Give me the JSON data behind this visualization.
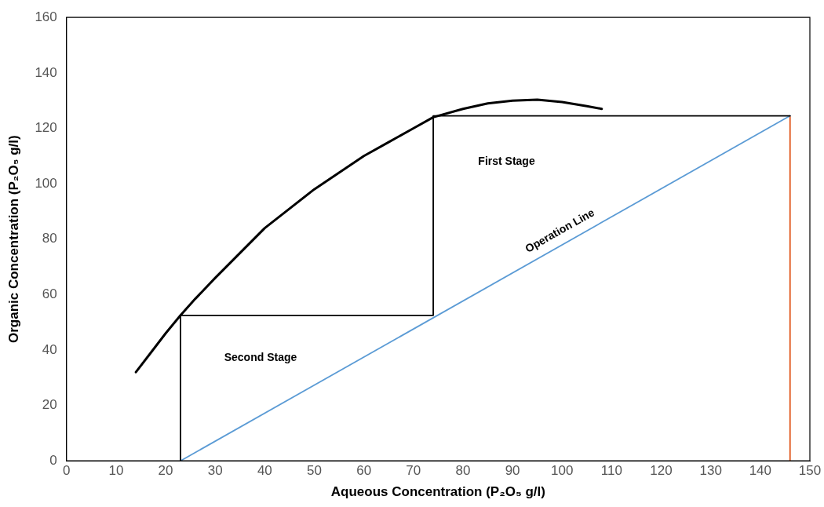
{
  "chart_data": {
    "type": "line",
    "xlabel": "Aqueous Concentration (P₂O₅ g/l)",
    "ylabel": "Organic Concentration (P₂O₅ g/l)",
    "xlim": [
      0,
      150
    ],
    "xticks": [
      0,
      10,
      20,
      30,
      40,
      50,
      60,
      70,
      80,
      90,
      100,
      110,
      120,
      130,
      140,
      150
    ],
    "ylim": [
      0,
      160
    ],
    "yticks": [
      0,
      20,
      40,
      60,
      80,
      100,
      120,
      140,
      160
    ],
    "grid": false,
    "legend": false,
    "marker": "none",
    "line_style": "solid",
    "series": [
      {
        "color": "#000000",
        "x": [
          14,
          17,
          20,
          23,
          26,
          30,
          35,
          40,
          45,
          50,
          55,
          60,
          65,
          70,
          74,
          80,
          85,
          90,
          95,
          100,
          105,
          108
        ],
        "values": [
          32,
          39,
          46,
          52.5,
          58.5,
          66,
          75,
          84,
          91,
          98,
          104,
          110,
          115,
          120,
          124,
          127,
          129,
          130,
          130.3,
          129.5,
          128,
          127
        ]
      },
      {
        "color": "#000000",
        "x": [
          23,
          23,
          74,
          74,
          146
        ],
        "values": [
          0,
          52.5,
          52.5,
          124.5,
          124.5
        ]
      },
      {
        "color": "#5b9bd5",
        "x": [
          23,
          146
        ],
        "values": [
          0,
          124.5
        ]
      },
      {
        "color": "#e0561b",
        "x": [
          146,
          146
        ],
        "values": [
          0,
          124.5
        ]
      }
    ],
    "annotations": [
      "First Stage",
      "Second Stage",
      "Operation Line"
    ]
  }
}
